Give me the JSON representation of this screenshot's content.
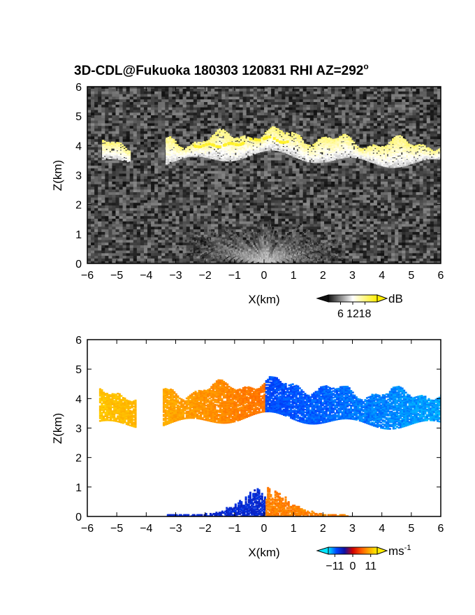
{
  "title": {
    "main": "3D-CDL@Fukuoka 180303 120831 RHI AZ=292",
    "degree_mark": "o"
  },
  "chart_data": [
    {
      "type": "heatmap",
      "name": "backscatter-intensity",
      "x": {
        "label": "X(km)",
        "range": [
          -6,
          6
        ],
        "ticks": [
          -6,
          -5,
          -4,
          -3,
          -2,
          -1,
          0,
          1,
          2,
          3,
          4,
          5,
          6
        ]
      },
      "y": {
        "label": "Z(km)",
        "range": [
          0,
          6
        ],
        "ticks": [
          0,
          1,
          2,
          3,
          4,
          5,
          6
        ]
      },
      "colorbar": {
        "unit": "dB",
        "ticks": [
          6,
          12,
          18
        ],
        "range": [
          0,
          24
        ],
        "colors": [
          "#111111",
          "#ffffff",
          "#ffee00"
        ]
      },
      "features": [
        {
          "kind": "cloud-layer",
          "x_range": [
            -5.5,
            6
          ],
          "z_base": 3.3,
          "z_top": 4.3,
          "intensity_db": 14
        },
        {
          "kind": "saturated-top",
          "x_range": [
            -2.4,
            0.8
          ],
          "z": 4.0,
          "intensity_db": 22
        },
        {
          "kind": "near-ground-fan",
          "center_x": 0,
          "z_top": 1.5,
          "intensity_db": 8
        }
      ]
    },
    {
      "type": "heatmap",
      "name": "doppler-velocity",
      "x": {
        "label": "X(km)",
        "range": [
          -6,
          6
        ],
        "ticks": [
          -6,
          -5,
          -4,
          -3,
          -2,
          -1,
          0,
          1,
          2,
          3,
          4,
          5,
          6
        ]
      },
      "y": {
        "label": "Z(km)",
        "range": [
          0,
          6
        ],
        "ticks": [
          0,
          1,
          2,
          3,
          4,
          5,
          6
        ]
      },
      "colorbar": {
        "unit": "ms",
        "unit_exponent": "-1",
        "ticks": [
          -11,
          0,
          11
        ],
        "range": [
          -15,
          15
        ],
        "colors": [
          "#00e5ff",
          "#0044ff",
          "#1010a0",
          "#d00000",
          "#ff5500",
          "#ffaa00",
          "#ffee00"
        ]
      },
      "features": [
        {
          "kind": "cloud-layer",
          "x_range": [
            -5.6,
            6
          ],
          "z_base": 3.0,
          "z_top": 4.4,
          "velocity_at_xmin": 12,
          "velocity_at_xmax": -13
        },
        {
          "kind": "near-ground-echo",
          "x_range": [
            -3.3,
            2.8
          ],
          "z_top": 1.0,
          "velocity_left": -8,
          "velocity_right": 8
        }
      ]
    }
  ]
}
